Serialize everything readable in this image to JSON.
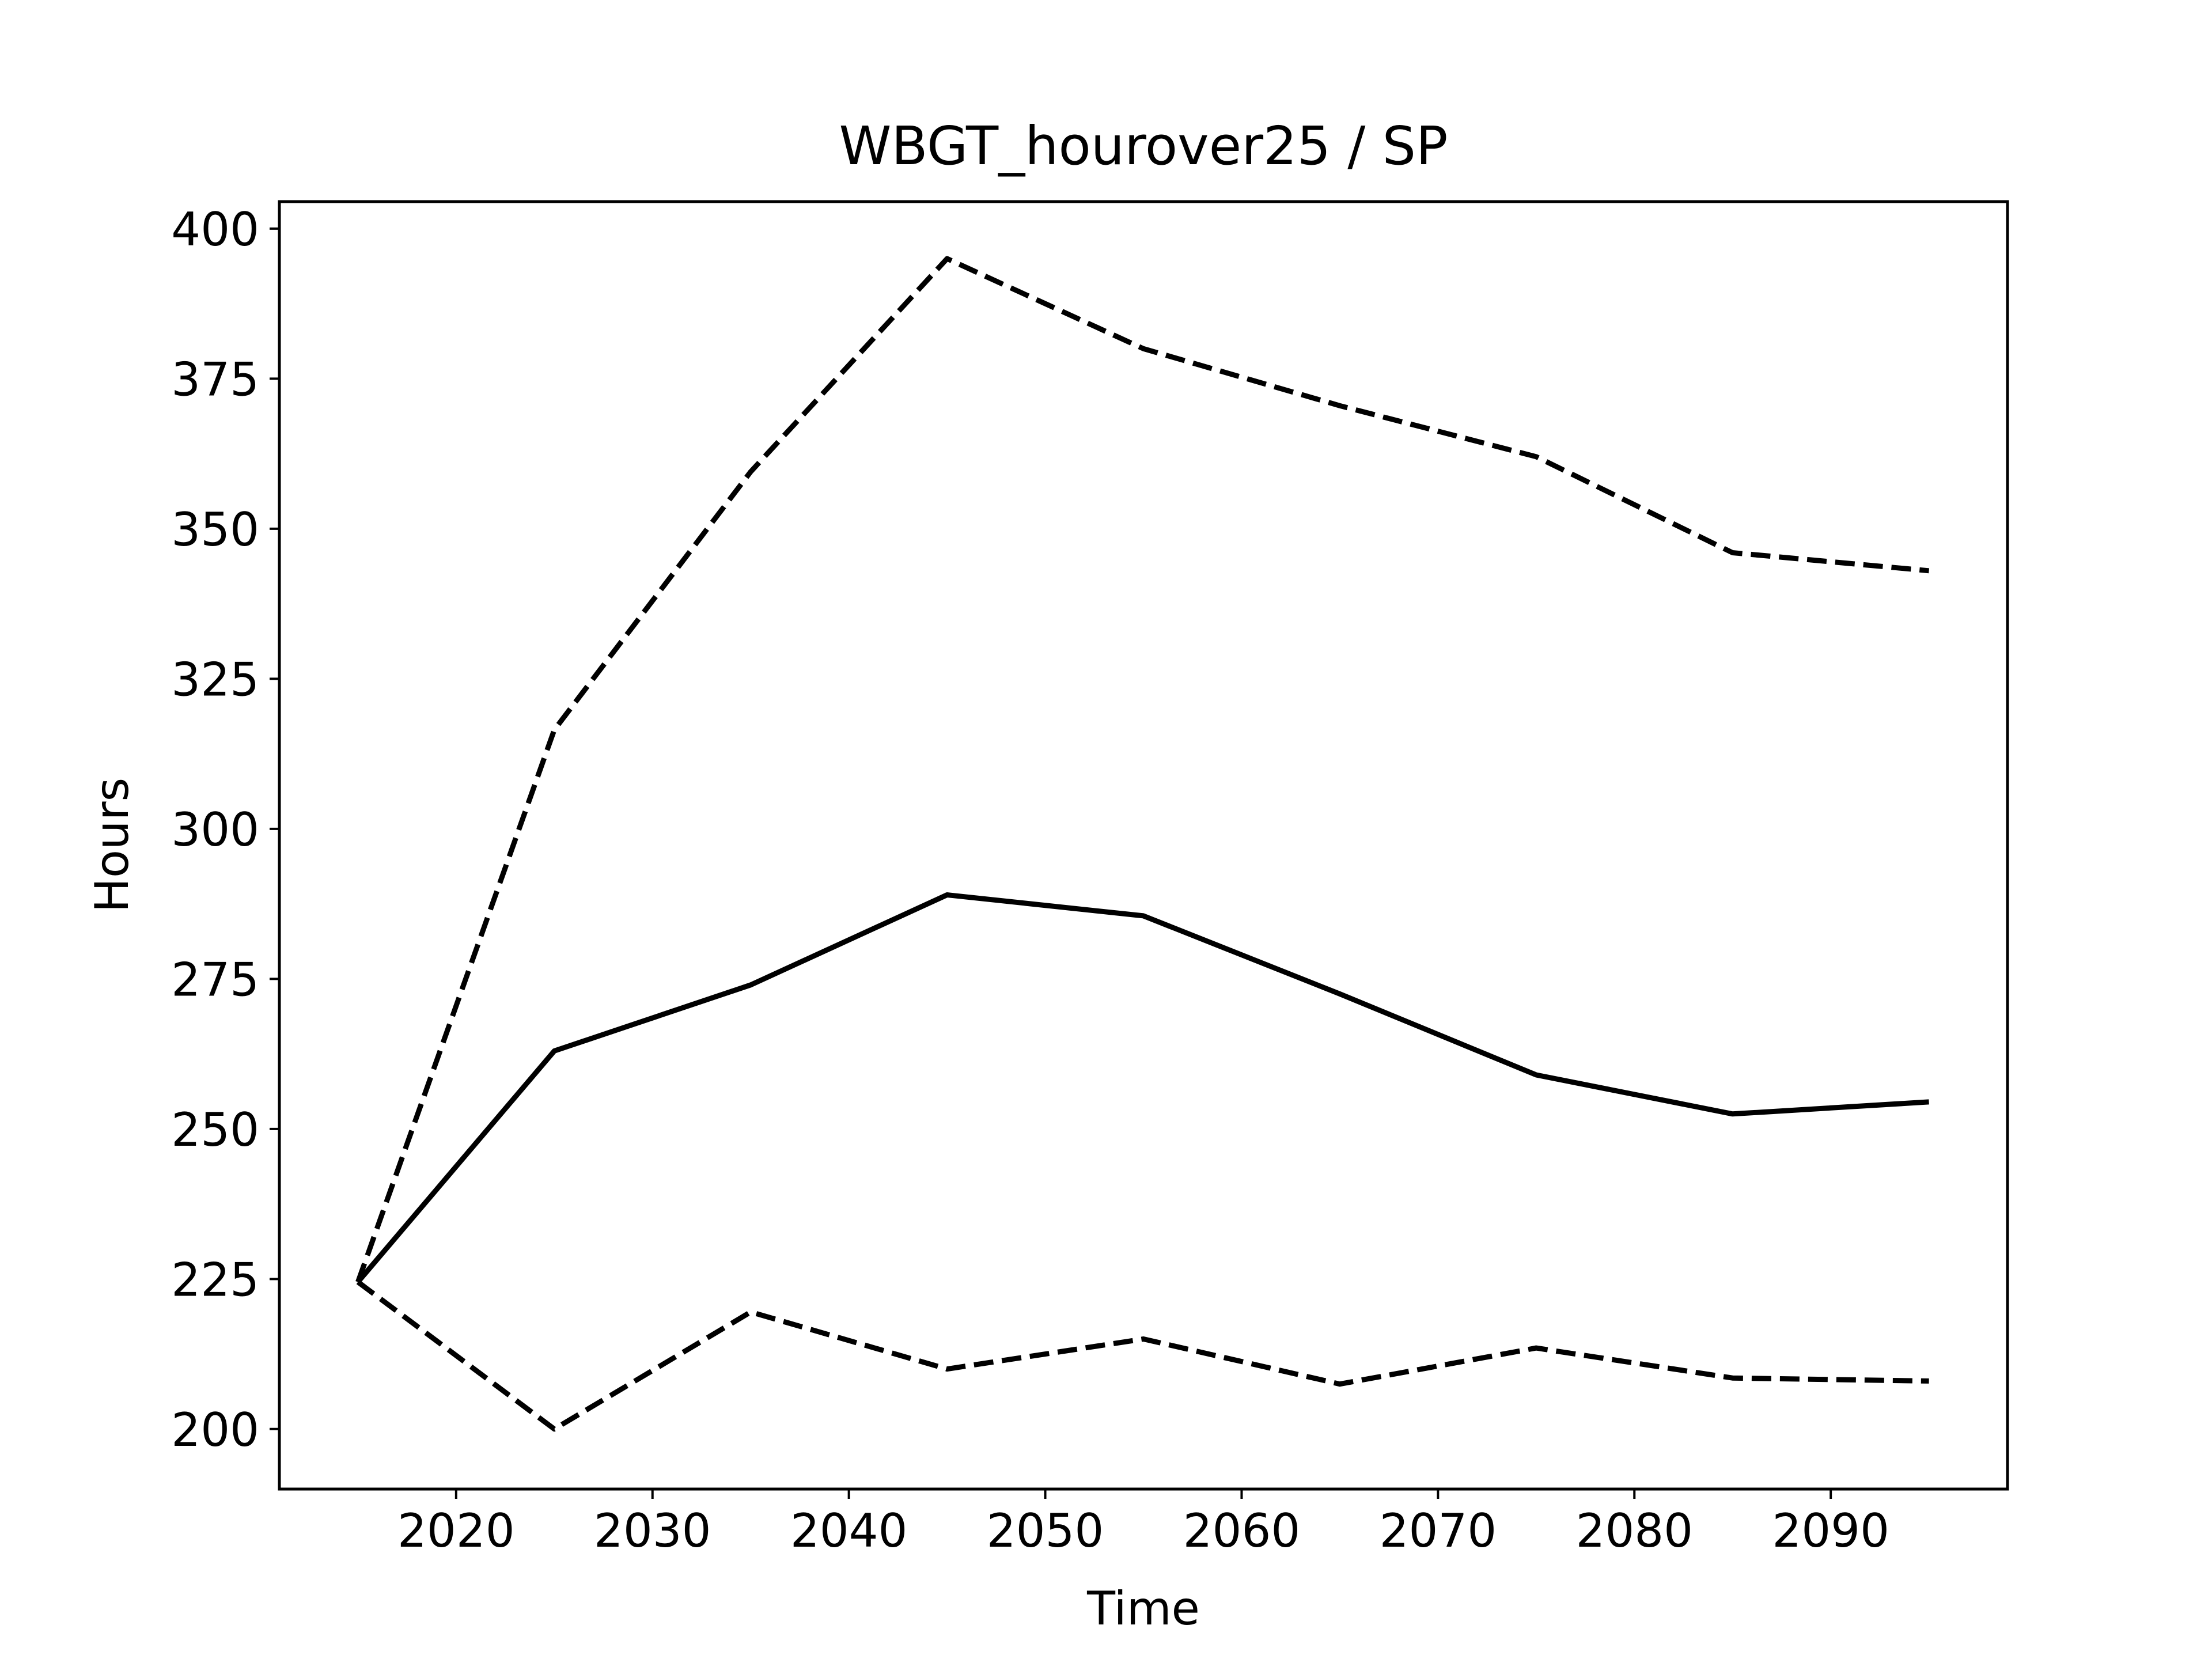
{
  "chart_data": {
    "type": "line",
    "title": "WBGT_hourover25 / SP",
    "xlabel": "Time",
    "ylabel": "Hours",
    "xlim": [
      2011,
      2099
    ],
    "ylim": [
      190,
      404.5
    ],
    "xticks": [
      2020,
      2030,
      2040,
      2050,
      2060,
      2070,
      2080,
      2090
    ],
    "yticks": [
      200,
      225,
      250,
      275,
      300,
      325,
      350,
      375,
      400
    ],
    "grid": false,
    "legend": "none",
    "x": [
      2015,
      2025,
      2035,
      2045,
      2055,
      2065,
      2075,
      2085,
      2095
    ],
    "series": [
      {
        "style": "solid",
        "color": "#000000",
        "values": [
          224.5,
          263,
          274,
          289,
          285.5,
          272.5,
          259,
          252.5,
          254.5
        ]
      },
      {
        "style": "dashed",
        "color": "#000000",
        "values": [
          224.5,
          316.5,
          359.5,
          395,
          380,
          370.5,
          362,
          346,
          343
        ]
      },
      {
        "style": "dashed",
        "color": "#000000",
        "values": [
          224.5,
          200,
          219.5,
          210,
          215,
          207.5,
          213.5,
          208.5,
          208
        ]
      }
    ]
  }
}
